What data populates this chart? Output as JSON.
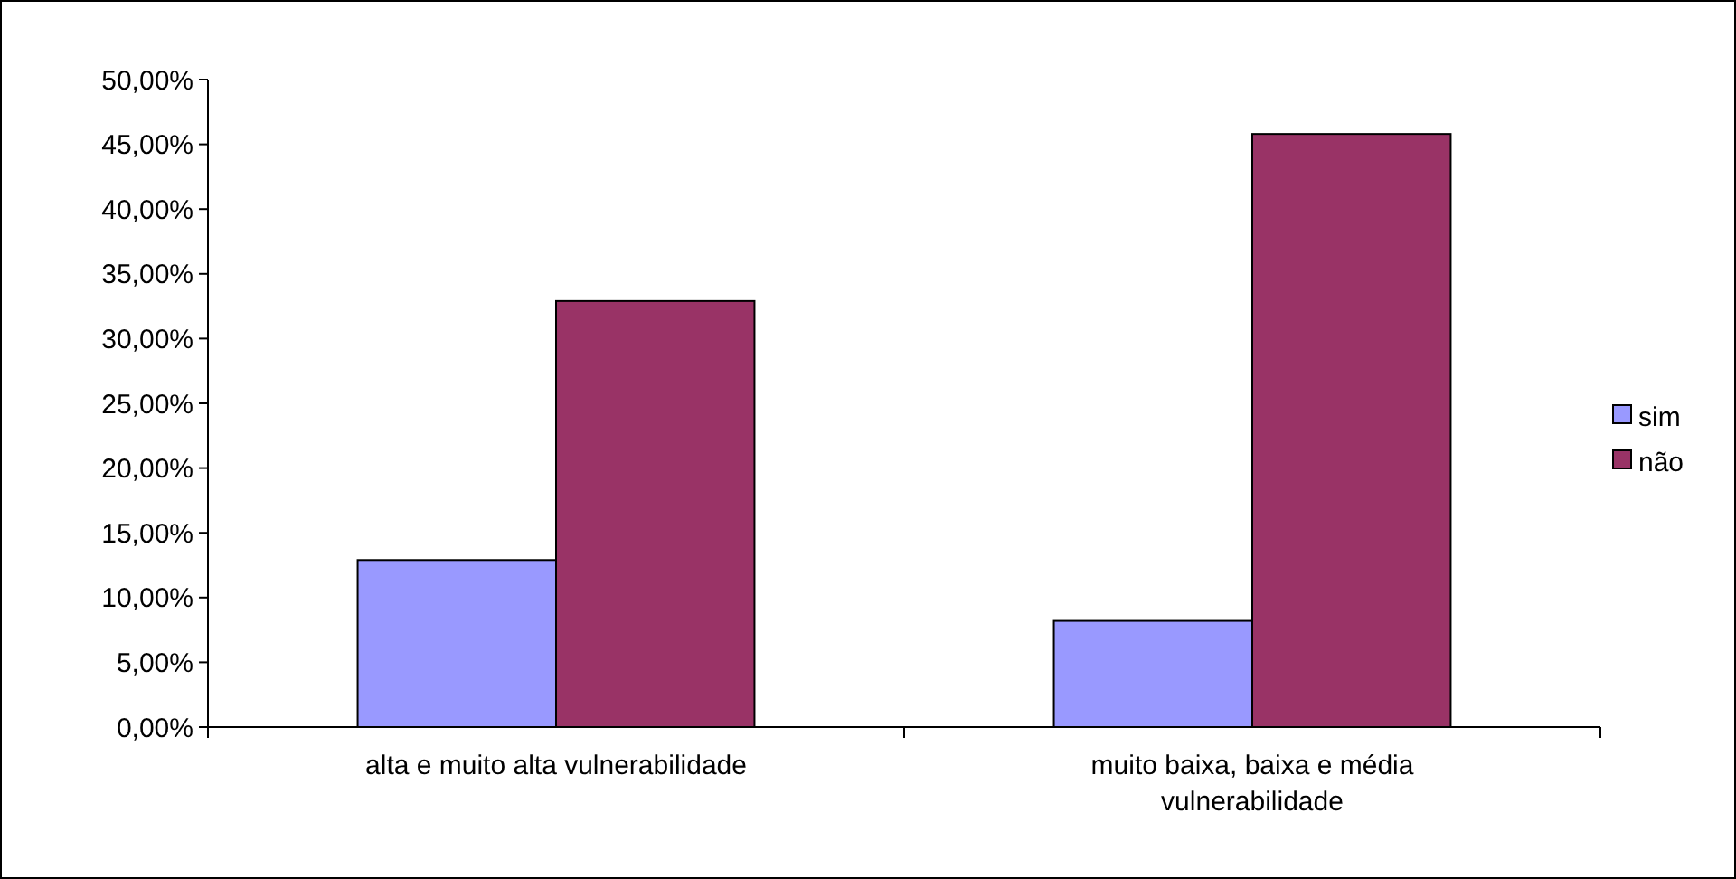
{
  "chart_data": {
    "type": "bar",
    "categories": [
      "alta e muito alta vulnerabilidade",
      "muito baixa, baixa e média vulnerabilidade"
    ],
    "series": [
      {
        "name": "sim",
        "color": "#9999ff",
        "values": [
          12.9,
          8.2
        ]
      },
      {
        "name": "não",
        "color": "#993366",
        "values": [
          32.9,
          45.8
        ]
      }
    ],
    "ylim": [
      0,
      50
    ],
    "yticks": [
      {
        "value": 0,
        "label": "0,00%"
      },
      {
        "value": 5,
        "label": "5,00%"
      },
      {
        "value": 10,
        "label": "10,00%"
      },
      {
        "value": 15,
        "label": "15,00%"
      },
      {
        "value": 20,
        "label": "20,00%"
      },
      {
        "value": 25,
        "label": "25,00%"
      },
      {
        "value": 30,
        "label": "30,00%"
      },
      {
        "value": 35,
        "label": "35,00%"
      },
      {
        "value": 40,
        "label": "40,00%"
      },
      {
        "value": 45,
        "label": "45,00%"
      },
      {
        "value": 50,
        "label": "50,00%"
      }
    ],
    "grid": false,
    "legend": "right"
  }
}
